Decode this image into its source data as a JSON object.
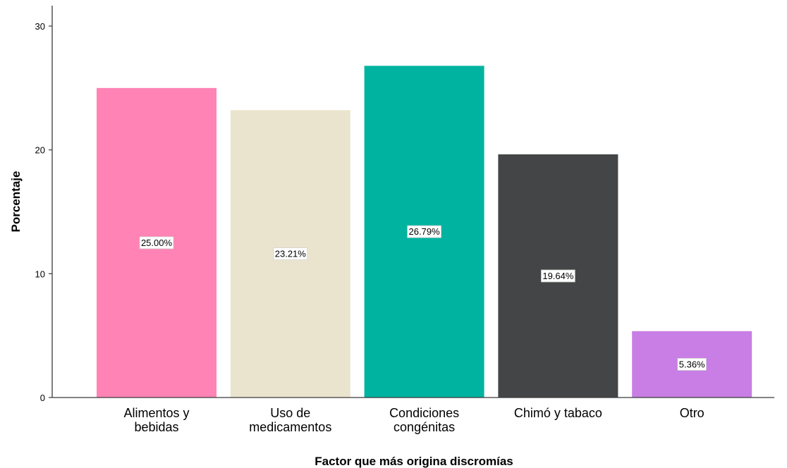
{
  "chart_data": {
    "type": "bar",
    "categories": [
      [
        "Alimentos y",
        "bebidas"
      ],
      [
        "Uso de",
        "medicamentos"
      ],
      [
        "Condiciones",
        "congénitas"
      ],
      [
        "Chimó y tabaco"
      ],
      [
        "Otro"
      ]
    ],
    "values": [
      25.0,
      23.21,
      26.79,
      19.64,
      5.36
    ],
    "data_labels": [
      "25.00%",
      "23.21%",
      "26.79%",
      "19.64%",
      "5.36%"
    ],
    "colors": [
      "#ff83b4",
      "#eae4ce",
      "#00b3a0",
      "#444546",
      "#c87ee4"
    ],
    "xlabel": "Factor que más origina discromías",
    "ylabel": "Porcentaje",
    "ylim": [
      0,
      30
    ],
    "yticks": [
      "0",
      "10",
      "20",
      "30"
    ],
    "grid": false,
    "legend": "none"
  }
}
